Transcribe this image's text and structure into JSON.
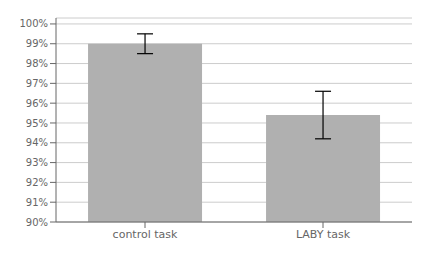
{
  "chart_data": {
    "type": "bar",
    "categories": [
      "control task",
      "LABY task"
    ],
    "values": [
      0.99,
      0.954
    ],
    "errors": [
      0.005,
      0.012
    ],
    "color": "#b0b0b0",
    "ylim": [
      0.9,
      1.003
    ],
    "yticks": [
      {
        "value": 0.9,
        "label": "90%"
      },
      {
        "value": 0.91,
        "label": "91%"
      },
      {
        "value": 0.92,
        "label": "92%"
      },
      {
        "value": 0.93,
        "label": "93%"
      },
      {
        "value": 0.94,
        "label": "94%"
      },
      {
        "value": 0.95,
        "label": "95%"
      },
      {
        "value": 0.96,
        "label": "96%"
      },
      {
        "value": 0.97,
        "label": "97%"
      },
      {
        "value": 0.98,
        "label": "98%"
      },
      {
        "value": 0.99,
        "label": "99%"
      },
      {
        "value": 1.0,
        "label": "100%"
      }
    ],
    "grid": true
  }
}
